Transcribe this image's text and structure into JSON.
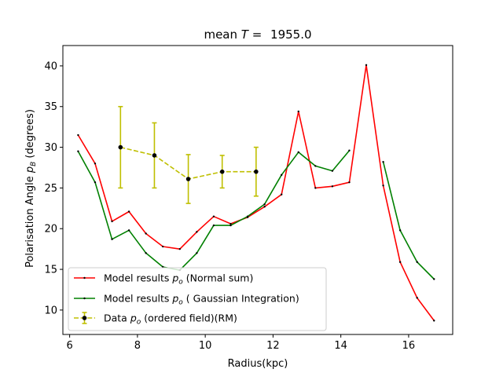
{
  "chart_data": {
    "type": "line",
    "title": {
      "prefix": "mean ",
      "symbol": "T",
      "suffix": " = ",
      "value": "1955.0"
    },
    "xlabel": "Radius(kpc)",
    "ylabel": {
      "before": "Polarisation Angle ",
      "symbol": "p",
      "sub": "B",
      "after": " (degrees)"
    },
    "xlim": [
      5.8,
      17.3
    ],
    "ylim": [
      7.0,
      42.5
    ],
    "xticks": [
      6,
      8,
      10,
      12,
      14,
      16
    ],
    "yticks": [
      10,
      15,
      20,
      25,
      30,
      35,
      40
    ],
    "grid": false,
    "legend_position": "lower-left",
    "series": [
      {
        "name": {
          "before": "Model results ",
          "symbol": "p",
          "sub": "o",
          "after": " (Normal sum)"
        },
        "color": "#ff0000",
        "style": "solid",
        "marker": "dot",
        "x": [
          6.25,
          6.75,
          7.25,
          7.75,
          8.25,
          8.75,
          9.25,
          9.75,
          10.25,
          10.75,
          11.25,
          11.75,
          12.25,
          12.75,
          13.25,
          13.75,
          14.25,
          14.75,
          15.25,
          15.75,
          16.25,
          16.75
        ],
        "y": [
          31.5,
          28.0,
          20.9,
          22.1,
          19.4,
          17.8,
          17.5,
          19.6,
          21.5,
          20.6,
          21.4,
          22.7,
          24.2,
          34.4,
          25.0,
          25.2,
          25.7,
          40.1,
          25.3,
          15.9,
          11.5,
          8.7
        ]
      },
      {
        "name": {
          "before": "Model results ",
          "symbol": "p",
          "sub": "o",
          "after": " ( Gaussian Integration)"
        },
        "color": "#008000",
        "style": "solid",
        "marker": "dot",
        "segments": [
          {
            "x": [
              6.25,
              6.75,
              7.25,
              7.75,
              8.25,
              8.75,
              9.25,
              9.75,
              10.25,
              10.75,
              11.25,
              11.75,
              12.25,
              12.75,
              13.25,
              13.75,
              14.25
            ],
            "y": [
              29.5,
              25.7,
              18.7,
              19.8,
              17.0,
              15.3,
              14.9,
              17.0,
              20.4,
              20.4,
              21.5,
              23.0,
              26.6,
              29.4,
              27.7,
              27.1,
              29.6
            ]
          },
          {
            "x": [
              15.25,
              15.75,
              16.25,
              16.75
            ],
            "y": [
              28.2,
              19.8,
              15.9,
              13.8
            ]
          }
        ]
      },
      {
        "name": {
          "before": "Data ",
          "symbol": "p",
          "sub": "o",
          "after": " (ordered field)(RM)"
        },
        "color": "#bfbf00",
        "style": "dashed",
        "marker": "circle",
        "errorbars": true,
        "x": [
          7.5,
          8.5,
          9.5,
          10.5,
          11.5
        ],
        "y": [
          30.0,
          29.0,
          26.1,
          27.0,
          27.0
        ],
        "yerr": [
          5.0,
          4.0,
          3.0,
          2.0,
          3.0
        ]
      }
    ]
  }
}
